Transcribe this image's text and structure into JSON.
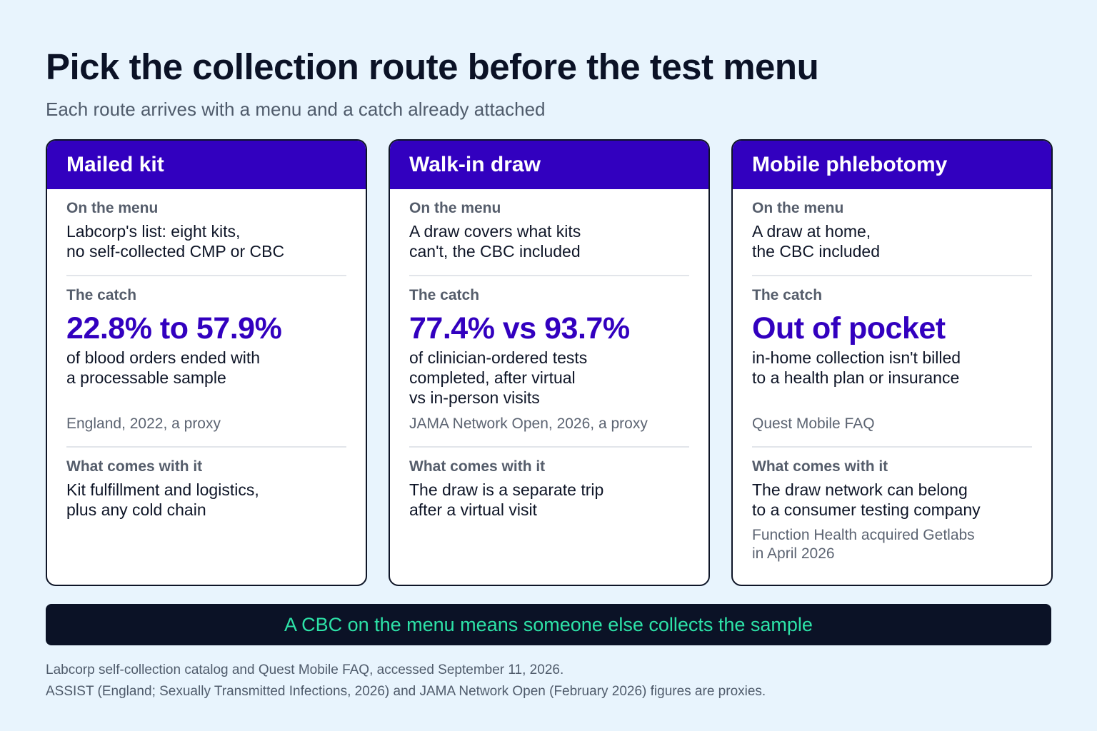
{
  "title": "Pick the collection route before the test menu",
  "subtitle": "Each route arrives with a menu and a catch already attached",
  "cards": [
    {
      "heading": "Mailed kit",
      "menu_label": "On the menu",
      "menu_text": "Labcorp's list: eight kits,\nno self-collected CMP or CBC",
      "catch_label": "The catch",
      "catch_figure": "22.8% to 57.9%",
      "catch_text": "of blood orders ended with\na processable sample",
      "catch_source": "England, 2022, a proxy",
      "comes_label": "What comes with it",
      "comes_text": "Kit fulfillment and logistics,\nplus any cold chain",
      "comes_note": ""
    },
    {
      "heading": "Walk-in draw",
      "menu_label": "On the menu",
      "menu_text": "A draw covers what kits\ncan't, the CBC included",
      "catch_label": "The catch",
      "catch_figure": "77.4% vs 93.7%",
      "catch_text": "of clinician-ordered tests\ncompleted, after virtual\nvs in-person visits",
      "catch_source": "JAMA Network Open, 2026, a proxy",
      "comes_label": "What comes with it",
      "comes_text": "The draw is a separate trip\nafter a virtual visit",
      "comes_note": ""
    },
    {
      "heading": "Mobile phlebotomy",
      "menu_label": "On the menu",
      "menu_text": "A draw at home,\nthe CBC included",
      "catch_label": "The catch",
      "catch_figure": "Out of pocket",
      "catch_text": "in-home collection isn't billed\nto a health plan or insurance",
      "catch_source": "Quest Mobile FAQ",
      "comes_label": "What comes with it",
      "comes_text": "The draw network can belong\nto a consumer testing company",
      "comes_note": "Function Health acquired Getlabs\nin April 2026"
    }
  ],
  "banner": "A CBC on the menu means someone else collects the sample",
  "footnotes": [
    "Labcorp self-collection catalog and Quest Mobile FAQ, accessed September 11, 2026.",
    "ASSIST (England; Sexually Transmitted Infections, 2026) and JAMA Network Open (February 2026) figures are proxies."
  ],
  "colors": {
    "background": "#e8f4fd",
    "header": "#3200bf",
    "accent": "#3200bf",
    "banner_bg": "#0b1226",
    "banner_text": "#2de3a8"
  }
}
